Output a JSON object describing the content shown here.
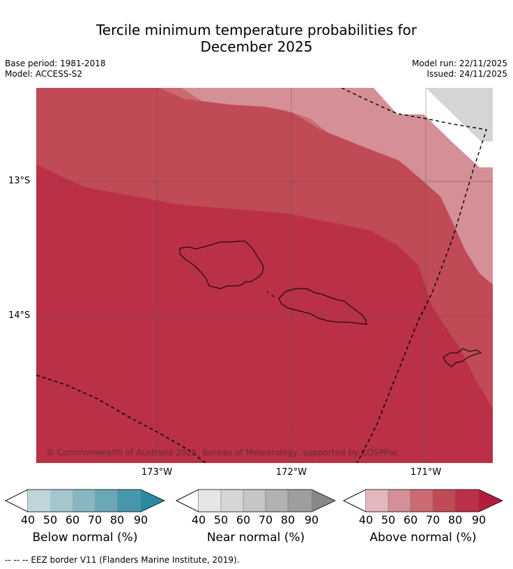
{
  "title_line1": "Tercile minimum temperature probabilities for",
  "title_line2": "December 2025",
  "meta": {
    "base_period": "Base period: 1981-2018",
    "model": "Model: ACCESS-S2",
    "model_run": "Model run: 22/11/2025",
    "issued": "Issued: 24/11/2025"
  },
  "axes": {
    "lat_labels": [
      "13°S",
      "14°S"
    ],
    "lon_labels": [
      "173°W",
      "172°W",
      "171°W"
    ]
  },
  "colorbars": [
    {
      "label": "Below normal (%)",
      "ticks": [
        "40",
        "50",
        "60",
        "70",
        "80",
        "90"
      ],
      "colors": [
        "#bfd5dc",
        "#a4c6cc",
        "#88b7c2",
        "#6aa8b8",
        "#4896ab",
        "#2b8aa1"
      ]
    },
    {
      "label": "Near normal (%)",
      "ticks": [
        "40",
        "50",
        "60",
        "70",
        "80",
        "90"
      ],
      "colors": [
        "#e6e6e6",
        "#d6d6d6",
        "#c6c6c6",
        "#b2b2b2",
        "#9e9e9e",
        "#888888"
      ]
    },
    {
      "label": "Above normal (%)",
      "ticks": [
        "40",
        "50",
        "60",
        "70",
        "80",
        "90"
      ],
      "colors": [
        "#e4b7bc",
        "#d49096",
        "#ca6b72",
        "#c04a55",
        "#b93047",
        "#b11e3c"
      ]
    }
  ],
  "colors": {
    "above_40_50": "#d49096",
    "above_50_60": "#ca6b72",
    "above_60_70": "#c04a55",
    "above_70_80": "#b93047",
    "no_data": "#d5d5d5"
  },
  "copyright": "© Commonwealth of Australia 2025, Bureau of Meteorology, supported by COSPPac",
  "footnote": "--  --  -- EEZ border V11 (Flanders Marine Institute, 2019)."
}
